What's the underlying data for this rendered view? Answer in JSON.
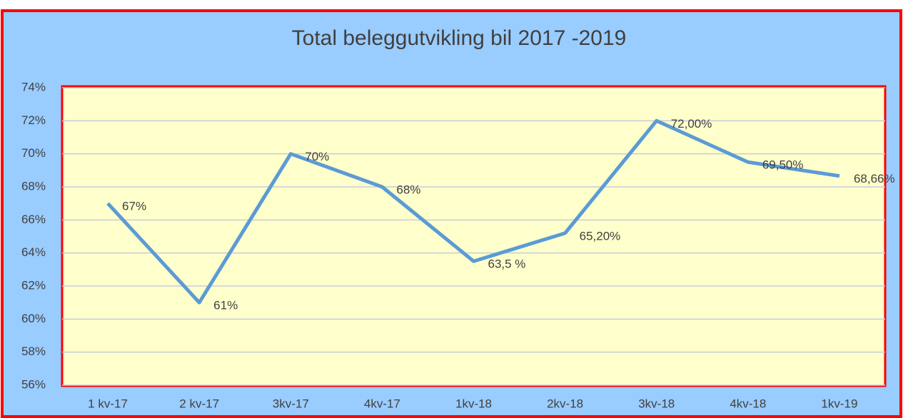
{
  "chart_data": {
    "type": "line",
    "title": "Total beleggutvikling bil 2017 -2019",
    "categories": [
      "1 kv-17",
      "2 kv-17",
      "3kv-17",
      "4kv-17",
      "1kv-18",
      "2kv-18",
      "3kv-18",
      "4kv-18",
      "1kv-19"
    ],
    "values": [
      67,
      61,
      70,
      68,
      63.5,
      65.2,
      72,
      69.5,
      68.66
    ],
    "value_labels": [
      "67%",
      "61%",
      "70%",
      "68%",
      "63,5 %",
      "65,20%",
      "72,00%",
      "69,50%",
      "68,66%"
    ],
    "color": "#5b9bd5",
    "ylim": [
      56,
      74
    ],
    "yticks": [
      {
        "value": 56,
        "label": "56%"
      },
      {
        "value": 58,
        "label": "58%"
      },
      {
        "value": 60,
        "label": "60%"
      },
      {
        "value": 62,
        "label": "62%"
      },
      {
        "value": 64,
        "label": "64%"
      },
      {
        "value": 66,
        "label": "66%"
      },
      {
        "value": 68,
        "label": "68%"
      },
      {
        "value": 70,
        "label": "70%"
      },
      {
        "value": 72,
        "label": "72%"
      },
      {
        "value": 74,
        "label": "74%"
      }
    ],
    "grid": true
  }
}
